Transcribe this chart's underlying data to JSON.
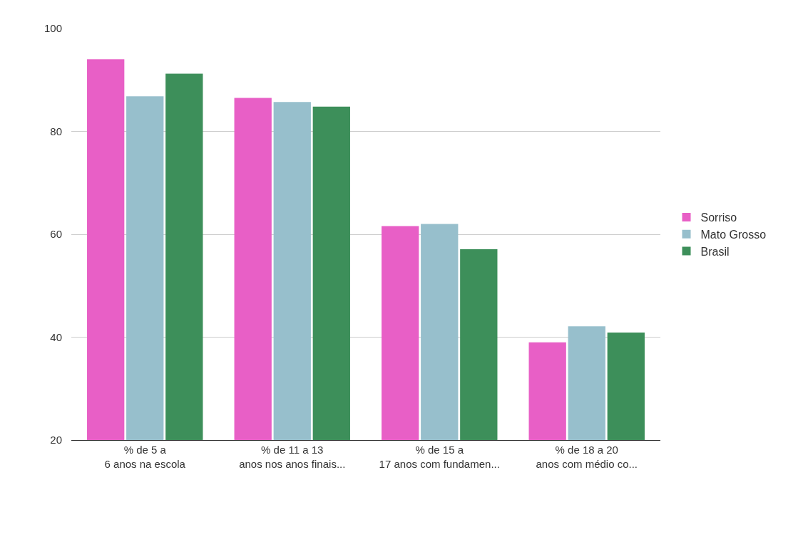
{
  "chart_data": {
    "type": "bar",
    "categories": [
      "% de 5 a 6 anos na escola",
      "% de 11 a 13 anos nos anos finais...",
      "% de 15 a 17 anos com fundamen...",
      "% de 18 a 20 anos com médio co..."
    ],
    "series": [
      {
        "name": "Sorriso",
        "color": "#e85fc6",
        "values": [
          94.0,
          86.5,
          61.6,
          39.0
        ]
      },
      {
        "name": "Mato Grosso",
        "color": "#97bfcc",
        "values": [
          86.8,
          85.7,
          62.0,
          42.1
        ]
      },
      {
        "name": "Brasil",
        "color": "#3d8f5a",
        "values": [
          91.2,
          84.8,
          57.1,
          40.9
        ]
      }
    ],
    "ylim": [
      20,
      100
    ],
    "yticks": [
      20,
      40,
      60,
      80,
      100
    ],
    "grid": "y",
    "legend": "right"
  }
}
